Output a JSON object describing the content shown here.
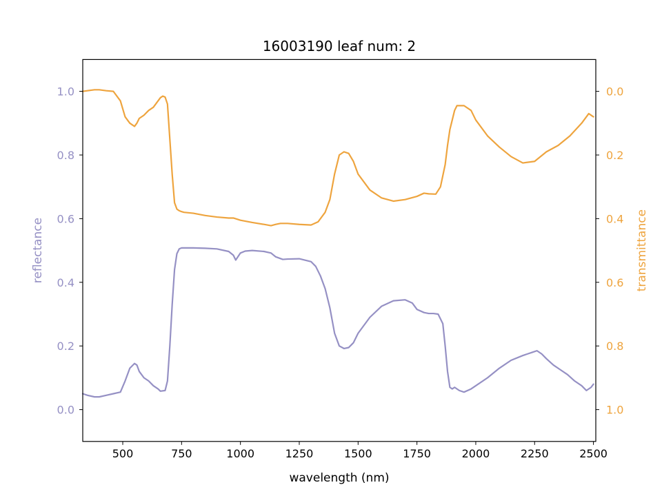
{
  "chart_data": {
    "type": "line",
    "title": "16003190 leaf num: 2",
    "xlabel": "wavelength (nm)",
    "xlim": [
      330,
      2510
    ],
    "xticks": [
      500,
      750,
      1000,
      1250,
      1500,
      1750,
      2000,
      2250,
      2500
    ],
    "grid": false,
    "left_axis": {
      "label": "reflectance",
      "ylim": [
        -0.1,
        1.1
      ],
      "ticks": [
        0.0,
        0.2,
        0.4,
        0.6,
        0.8,
        1.0
      ],
      "tick_labels": [
        "0.0",
        "0.2",
        "0.4",
        "0.6",
        "0.8",
        "1.0"
      ],
      "color": "#9590c4"
    },
    "right_axis": {
      "label": "transmittance",
      "ylim": [
        1.1,
        -0.1
      ],
      "inverted": true,
      "ticks": [
        0.0,
        0.2,
        0.4,
        0.6,
        0.8,
        1.0
      ],
      "tick_labels": [
        "0.0",
        "0.2",
        "0.4",
        "0.6",
        "0.8",
        "1.0"
      ],
      "color": "#eea43e"
    },
    "series": [
      {
        "axis": "left",
        "color": "#9590c4",
        "x": [
          330,
          350,
          380,
          400,
          430,
          460,
          490,
          510,
          530,
          550,
          560,
          570,
          590,
          610,
          630,
          650,
          660,
          680,
          690,
          700,
          710,
          720,
          730,
          740,
          750,
          760,
          800,
          850,
          900,
          950,
          970,
          980,
          1000,
          1020,
          1050,
          1100,
          1130,
          1150,
          1180,
          1200,
          1250,
          1300,
          1320,
          1340,
          1360,
          1380,
          1400,
          1420,
          1440,
          1460,
          1480,
          1500,
          1550,
          1600,
          1650,
          1700,
          1730,
          1750,
          1780,
          1800,
          1820,
          1840,
          1860,
          1870,
          1880,
          1890,
          1900,
          1910,
          1930,
          1950,
          1980,
          2000,
          2050,
          2100,
          2150,
          2200,
          2220,
          2240,
          2260,
          2280,
          2300,
          2330,
          2360,
          2390,
          2420,
          2450,
          2470,
          2490,
          2500
        ],
        "y": [
          0.05,
          0.045,
          0.04,
          0.04,
          0.045,
          0.05,
          0.055,
          0.09,
          0.13,
          0.145,
          0.14,
          0.12,
          0.1,
          0.09,
          0.075,
          0.065,
          0.058,
          0.06,
          0.09,
          0.2,
          0.33,
          0.44,
          0.49,
          0.505,
          0.508,
          0.508,
          0.508,
          0.507,
          0.505,
          0.497,
          0.485,
          0.47,
          0.492,
          0.498,
          0.5,
          0.497,
          0.492,
          0.48,
          0.472,
          0.473,
          0.474,
          0.465,
          0.45,
          0.42,
          0.38,
          0.32,
          0.24,
          0.2,
          0.192,
          0.195,
          0.21,
          0.24,
          0.29,
          0.325,
          0.342,
          0.345,
          0.335,
          0.315,
          0.305,
          0.302,
          0.302,
          0.3,
          0.27,
          0.2,
          0.12,
          0.07,
          0.065,
          0.07,
          0.06,
          0.055,
          0.065,
          0.075,
          0.1,
          0.13,
          0.155,
          0.17,
          0.175,
          0.18,
          0.185,
          0.175,
          0.16,
          0.14,
          0.125,
          0.11,
          0.09,
          0.075,
          0.06,
          0.07,
          0.08
        ]
      },
      {
        "axis": "right",
        "color": "#eea43e",
        "x": [
          330,
          350,
          380,
          400,
          430,
          460,
          490,
          510,
          530,
          550,
          560,
          570,
          590,
          610,
          630,
          650,
          660,
          670,
          680,
          690,
          700,
          710,
          720,
          730,
          740,
          750,
          760,
          800,
          850,
          900,
          950,
          970,
          1000,
          1050,
          1100,
          1130,
          1150,
          1170,
          1200,
          1250,
          1300,
          1330,
          1360,
          1380,
          1400,
          1420,
          1440,
          1460,
          1480,
          1500,
          1550,
          1600,
          1650,
          1700,
          1750,
          1780,
          1800,
          1830,
          1850,
          1870,
          1880,
          1890,
          1900,
          1910,
          1920,
          1950,
          1980,
          2000,
          2050,
          2100,
          2150,
          2200,
          2250,
          2300,
          2350,
          2400,
          2450,
          2480,
          2500
        ],
        "y": [
          0.0,
          -0.002,
          -0.005,
          -0.005,
          -0.002,
          0.0,
          0.03,
          0.08,
          0.1,
          0.11,
          0.1,
          0.085,
          0.075,
          0.06,
          0.05,
          0.03,
          0.02,
          0.015,
          0.018,
          0.04,
          0.15,
          0.26,
          0.35,
          0.37,
          0.375,
          0.378,
          0.38,
          0.383,
          0.39,
          0.395,
          0.398,
          0.398,
          0.405,
          0.412,
          0.418,
          0.422,
          0.418,
          0.415,
          0.415,
          0.418,
          0.42,
          0.41,
          0.38,
          0.34,
          0.26,
          0.2,
          0.19,
          0.195,
          0.22,
          0.26,
          0.31,
          0.335,
          0.345,
          0.34,
          0.33,
          0.32,
          0.322,
          0.323,
          0.3,
          0.23,
          0.17,
          0.12,
          0.09,
          0.06,
          0.045,
          0.045,
          0.06,
          0.09,
          0.14,
          0.175,
          0.205,
          0.225,
          0.22,
          0.19,
          0.17,
          0.14,
          0.1,
          0.07,
          0.08
        ]
      }
    ]
  }
}
